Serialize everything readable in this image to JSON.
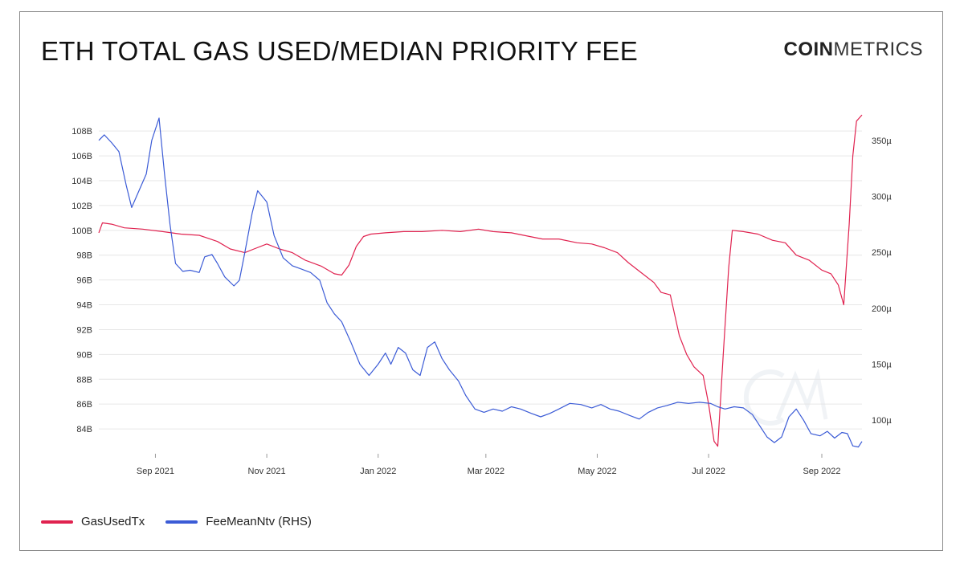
{
  "header": {
    "title": "ETH TOTAL GAS USED/MEDIAN PRIORITY FEE",
    "logo_bold": "COIN",
    "logo_light": "METRICS"
  },
  "legend": {
    "items": [
      {
        "label": "GasUsedTx",
        "color": "#e0224f"
      },
      {
        "label": "FeeMeanNtv (RHS)",
        "color": "#3b5bd6"
      }
    ],
    "placement": "bottom-left"
  },
  "chart_data": {
    "type": "line",
    "title": "ETH TOTAL GAS USED/MEDIAN PRIORITY FEE",
    "xlabel": "",
    "ylabel": "",
    "grid": "horizontal",
    "x_ticks": [
      "Sep 2021",
      "Nov 2021",
      "Jan 2022",
      "Mar 2022",
      "May 2022",
      "Jul 2022",
      "Sep 2022"
    ],
    "x_range": [
      "2021-08-01",
      "2022-09-23"
    ],
    "y_left": {
      "ticks": [
        "84B",
        "86B",
        "88B",
        "90B",
        "92B",
        "94B",
        "96B",
        "98B",
        "100B",
        "102B",
        "104B",
        "106B",
        "108B"
      ],
      "range": [
        82,
        109.5
      ]
    },
    "y_right": {
      "ticks": [
        "100µ",
        "150µ",
        "200µ",
        "250µ",
        "300µ",
        "350µ"
      ],
      "range": [
        70,
        375
      ]
    },
    "series": [
      {
        "name": "GasUsedTx",
        "axis": "left",
        "color": "#e0224f",
        "points": [
          [
            "2021-08-01",
            99.8
          ],
          [
            "2021-08-03",
            100.6
          ],
          [
            "2021-08-08",
            100.5
          ],
          [
            "2021-08-15",
            100.2
          ],
          [
            "2021-08-25",
            100.1
          ],
          [
            "2021-09-05",
            99.9
          ],
          [
            "2021-09-15",
            99.7
          ],
          [
            "2021-09-25",
            99.6
          ],
          [
            "2021-10-05",
            99.1
          ],
          [
            "2021-10-12",
            98.5
          ],
          [
            "2021-10-20",
            98.2
          ],
          [
            "2021-10-25",
            98.5
          ],
          [
            "2021-11-01",
            98.9
          ],
          [
            "2021-11-08",
            98.5
          ],
          [
            "2021-11-15",
            98.2
          ],
          [
            "2021-11-22",
            97.6
          ],
          [
            "2021-12-01",
            97.1
          ],
          [
            "2021-12-08",
            96.5
          ],
          [
            "2021-12-12",
            96.4
          ],
          [
            "2021-12-16",
            97.2
          ],
          [
            "2021-12-20",
            98.7
          ],
          [
            "2021-12-24",
            99.5
          ],
          [
            "2021-12-28",
            99.7
          ],
          [
            "2022-01-05",
            99.8
          ],
          [
            "2022-01-15",
            99.9
          ],
          [
            "2022-01-25",
            99.9
          ],
          [
            "2022-02-05",
            100.0
          ],
          [
            "2022-02-15",
            99.9
          ],
          [
            "2022-02-25",
            100.1
          ],
          [
            "2022-03-05",
            99.9
          ],
          [
            "2022-03-15",
            99.8
          ],
          [
            "2022-03-25",
            99.5
          ],
          [
            "2022-04-01",
            99.3
          ],
          [
            "2022-04-10",
            99.3
          ],
          [
            "2022-04-20",
            99.0
          ],
          [
            "2022-04-28",
            98.9
          ],
          [
            "2022-05-05",
            98.6
          ],
          [
            "2022-05-12",
            98.2
          ],
          [
            "2022-05-18",
            97.4
          ],
          [
            "2022-05-25",
            96.6
          ],
          [
            "2022-06-01",
            95.8
          ],
          [
            "2022-06-05",
            95.0
          ],
          [
            "2022-06-10",
            94.8
          ],
          [
            "2022-06-15",
            91.5
          ],
          [
            "2022-06-19",
            90.0
          ],
          [
            "2022-06-23",
            89.0
          ],
          [
            "2022-06-28",
            88.3
          ],
          [
            "2022-07-01",
            86.0
          ],
          [
            "2022-07-04",
            83.0
          ],
          [
            "2022-07-06",
            82.6
          ],
          [
            "2022-07-09",
            90.0
          ],
          [
            "2022-07-12",
            97.0
          ],
          [
            "2022-07-14",
            100.0
          ],
          [
            "2022-07-20",
            99.9
          ],
          [
            "2022-07-28",
            99.7
          ],
          [
            "2022-08-05",
            99.2
          ],
          [
            "2022-08-12",
            99.0
          ],
          [
            "2022-08-18",
            98.0
          ],
          [
            "2022-08-25",
            97.6
          ],
          [
            "2022-09-01",
            96.8
          ],
          [
            "2022-09-06",
            96.5
          ],
          [
            "2022-09-10",
            95.6
          ],
          [
            "2022-09-13",
            94.0
          ],
          [
            "2022-09-16",
            100.5
          ],
          [
            "2022-09-18",
            106.0
          ],
          [
            "2022-09-20",
            108.8
          ],
          [
            "2022-09-23",
            109.3
          ]
        ]
      },
      {
        "name": "FeeMeanNtv (RHS)",
        "axis": "right",
        "color": "#3b5bd6",
        "points": [
          [
            "2021-08-01",
            350
          ],
          [
            "2021-08-04",
            355
          ],
          [
            "2021-08-08",
            348
          ],
          [
            "2021-08-12",
            340
          ],
          [
            "2021-08-16",
            310
          ],
          [
            "2021-08-19",
            290
          ],
          [
            "2021-08-23",
            305
          ],
          [
            "2021-08-27",
            320
          ],
          [
            "2021-08-30",
            350
          ],
          [
            "2021-09-03",
            370
          ],
          [
            "2021-09-06",
            320
          ],
          [
            "2021-09-09",
            275
          ],
          [
            "2021-09-12",
            240
          ],
          [
            "2021-09-16",
            233
          ],
          [
            "2021-09-20",
            234
          ],
          [
            "2021-09-25",
            232
          ],
          [
            "2021-09-28",
            246
          ],
          [
            "2021-10-02",
            248
          ],
          [
            "2021-10-05",
            240
          ],
          [
            "2021-10-09",
            228
          ],
          [
            "2021-10-14",
            220
          ],
          [
            "2021-10-17",
            225
          ],
          [
            "2021-10-20",
            250
          ],
          [
            "2021-10-24",
            285
          ],
          [
            "2021-10-27",
            305
          ],
          [
            "2021-11-01",
            295
          ],
          [
            "2021-11-05",
            265
          ],
          [
            "2021-11-10",
            245
          ],
          [
            "2021-11-15",
            238
          ],
          [
            "2021-11-20",
            235
          ],
          [
            "2021-11-25",
            232
          ],
          [
            "2021-11-30",
            225
          ],
          [
            "2021-12-04",
            205
          ],
          [
            "2021-12-08",
            195
          ],
          [
            "2021-12-12",
            188
          ],
          [
            "2021-12-17",
            170
          ],
          [
            "2021-12-22",
            150
          ],
          [
            "2021-12-27",
            140
          ],
          [
            "2022-01-01",
            150
          ],
          [
            "2022-01-05",
            160
          ],
          [
            "2022-01-08",
            150
          ],
          [
            "2022-01-12",
            165
          ],
          [
            "2022-01-16",
            160
          ],
          [
            "2022-01-20",
            145
          ],
          [
            "2022-01-24",
            140
          ],
          [
            "2022-01-28",
            165
          ],
          [
            "2022-02-01",
            170
          ],
          [
            "2022-02-05",
            155
          ],
          [
            "2022-02-09",
            145
          ],
          [
            "2022-02-14",
            135
          ],
          [
            "2022-02-18",
            122
          ],
          [
            "2022-02-23",
            110
          ],
          [
            "2022-02-28",
            107
          ],
          [
            "2022-03-05",
            110
          ],
          [
            "2022-03-10",
            108
          ],
          [
            "2022-03-15",
            112
          ],
          [
            "2022-03-20",
            110
          ],
          [
            "2022-03-26",
            106
          ],
          [
            "2022-03-31",
            103
          ],
          [
            "2022-04-05",
            106
          ],
          [
            "2022-04-10",
            110
          ],
          [
            "2022-04-16",
            115
          ],
          [
            "2022-04-22",
            114
          ],
          [
            "2022-04-28",
            111
          ],
          [
            "2022-05-03",
            114
          ],
          [
            "2022-05-08",
            110
          ],
          [
            "2022-05-13",
            108
          ],
          [
            "2022-05-19",
            104
          ],
          [
            "2022-05-24",
            101
          ],
          [
            "2022-05-29",
            107
          ],
          [
            "2022-06-03",
            111
          ],
          [
            "2022-06-08",
            113
          ],
          [
            "2022-06-14",
            116
          ],
          [
            "2022-06-20",
            115
          ],
          [
            "2022-06-26",
            116
          ],
          [
            "2022-07-02",
            115
          ],
          [
            "2022-07-06",
            112
          ],
          [
            "2022-07-10",
            110
          ],
          [
            "2022-07-15",
            112
          ],
          [
            "2022-07-20",
            111
          ],
          [
            "2022-07-25",
            105
          ],
          [
            "2022-07-29",
            95
          ],
          [
            "2022-08-02",
            85
          ],
          [
            "2022-08-06",
            80
          ],
          [
            "2022-08-10",
            85
          ],
          [
            "2022-08-14",
            103
          ],
          [
            "2022-08-18",
            110
          ],
          [
            "2022-08-22",
            100
          ],
          [
            "2022-08-26",
            88
          ],
          [
            "2022-08-31",
            86
          ],
          [
            "2022-09-04",
            90
          ],
          [
            "2022-09-08",
            84
          ],
          [
            "2022-09-12",
            89
          ],
          [
            "2022-09-15",
            88
          ],
          [
            "2022-09-18",
            77
          ],
          [
            "2022-09-21",
            76
          ],
          [
            "2022-09-23",
            81
          ]
        ]
      }
    ]
  }
}
